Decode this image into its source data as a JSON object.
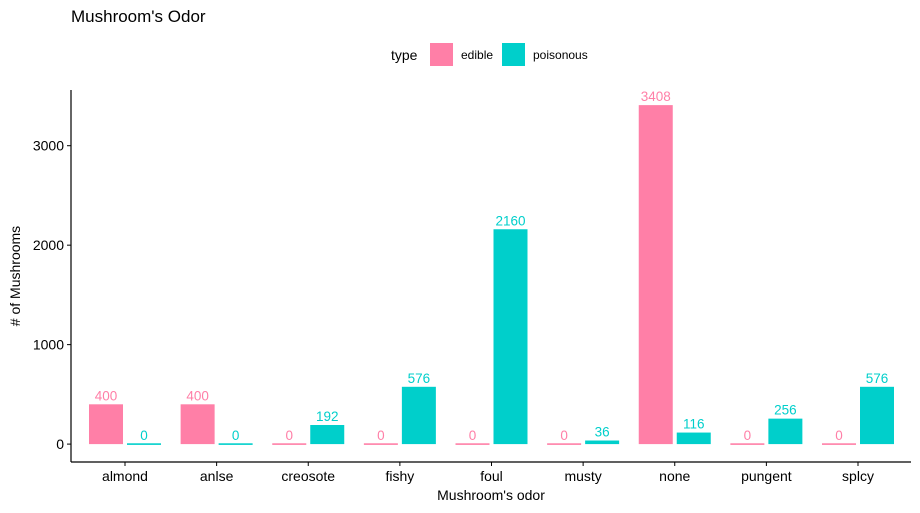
{
  "chart_data": {
    "type": "bar",
    "title": "Mushroom's Odor",
    "xlabel": "Mushroom's odor",
    "ylabel": "# of Mushrooms",
    "legend": {
      "title": "type",
      "position": "top"
    },
    "categories": [
      "almond",
      "anlse",
      "creosote",
      "fishy",
      "foul",
      "musty",
      "none",
      "pungent",
      "splcy"
    ],
    "series": [
      {
        "name": "edible",
        "color": "#FF7FA7",
        "values": [
          400,
          400,
          0,
          0,
          0,
          0,
          3408,
          0,
          0
        ]
      },
      {
        "name": "poisonous",
        "color": "#00CFCB",
        "values": [
          0,
          0,
          192,
          576,
          2160,
          36,
          116,
          256,
          576
        ]
      }
    ],
    "yticks": [
      0,
      1000,
      2000,
      3000
    ],
    "ylim": [
      -180,
      3560
    ],
    "grid": false
  }
}
